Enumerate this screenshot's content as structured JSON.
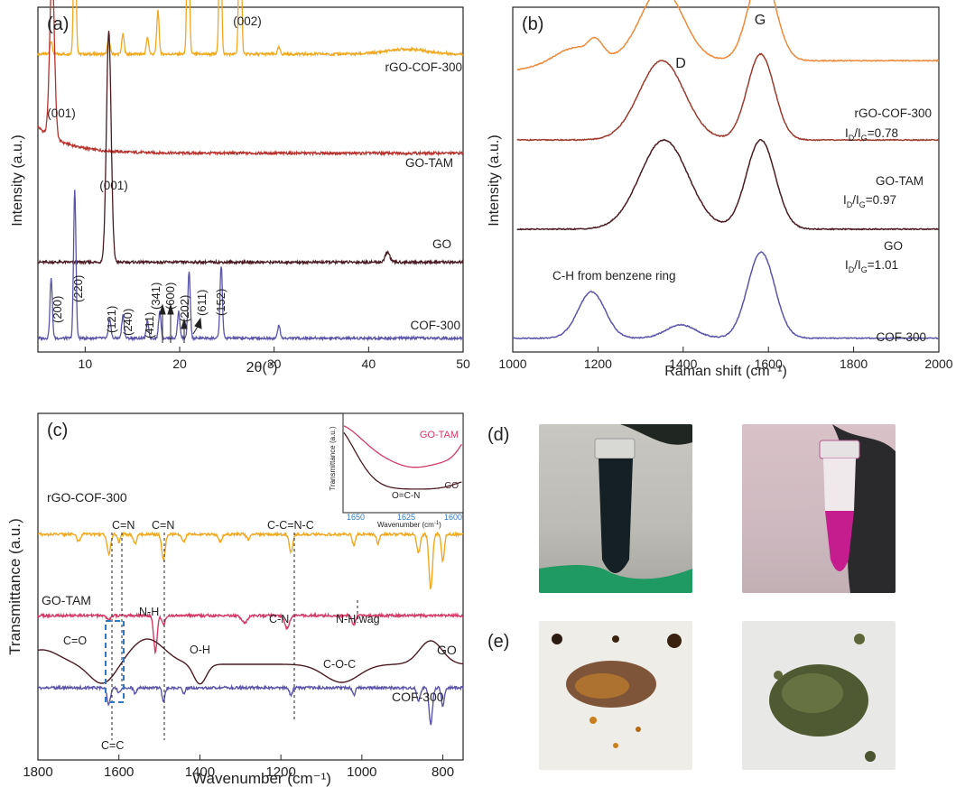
{
  "colors": {
    "yellow": "#f0a81f",
    "red": "#b8322d",
    "maroon": "#4a1c22",
    "blue": "#5a55a8",
    "orange": "#ee8a3a",
    "brown": "#9c3a2e",
    "pink": "#d33b66",
    "lightblue": "#2f78c4"
  },
  "chart_data": [
    {
      "panel_label": "(a)",
      "type": "line",
      "xlabel": "2θ(°)",
      "ylabel": "Intensity (a.u.)",
      "xlim": [
        5,
        50
      ],
      "xticks": [
        "10",
        "20",
        "30",
        "40",
        "50"
      ],
      "series": [
        {
          "name": "rGO-COF-300",
          "color": "#f0a81f",
          "baseline": 0.88,
          "peaks": [
            [
              6.4,
              0.04
            ],
            [
              8.9,
              0.45
            ],
            [
              12.5,
              0.05
            ],
            [
              14.0,
              0.06
            ],
            [
              16.6,
              0.05
            ],
            [
              17.7,
              0.13
            ],
            [
              20.9,
              0.47
            ],
            [
              24.3,
              0.46
            ],
            [
              26.4,
              0.6
            ],
            [
              30.5,
              0.02
            ]
          ],
          "label": "rGO-COF-300",
          "annotation": "(002)"
        },
        {
          "name": "GO-TAM",
          "color": "#b8322d",
          "baseline": 0.58,
          "peaks": [
            [
              6.5,
              0.5
            ]
          ],
          "label": "GO-TAM",
          "annotation": "(001)"
        },
        {
          "name": "GO",
          "color": "#4a1c22",
          "baseline": 0.25,
          "peaks": [
            [
              12.5,
              0.7
            ],
            [
              42.0,
              0.03
            ]
          ],
          "label": "GO",
          "annotation": "(001)"
        },
        {
          "name": "COF-300",
          "color": "#5a55a8",
          "baseline": 0.02,
          "peaks": [
            [
              6.4,
              0.18
            ],
            [
              8.9,
              0.45
            ],
            [
              12.6,
              0.06
            ],
            [
              14.0,
              0.07
            ],
            [
              16.6,
              0.05
            ],
            [
              17.9,
              0.08
            ],
            [
              19.9,
              0.08
            ],
            [
              21.0,
              0.2
            ],
            [
              24.4,
              0.22
            ],
            [
              30.5,
              0.04
            ]
          ],
          "label": "COF-300"
        }
      ],
      "annotations": [
        "(200)",
        "(220)",
        "(121)",
        "(240)",
        "(411)",
        "(341)",
        "(600)",
        "(202)",
        "(611)",
        "(152)"
      ]
    },
    {
      "panel_label": "(b)",
      "type": "line",
      "xlabel": "Raman shift (cm⁻¹)",
      "ylabel": "Intensity (a.u.)",
      "xlim": [
        1000,
        2000
      ],
      "xticks": [
        "1000",
        "1200",
        "1400",
        "1600",
        "1800",
        "2000"
      ],
      "peak_labels": [
        "D",
        "G"
      ],
      "series": [
        {
          "name": "rGO-COF-300",
          "color": "#ee8a3a",
          "baseline": 0.86,
          "ratio_label": "=0.78"
        },
        {
          "name": "GO-TAM",
          "color": "#9c3a2e",
          "baseline": 0.62,
          "ratio_label": "=0.97"
        },
        {
          "name": "GO",
          "color": "#4a1c22",
          "baseline": 0.35,
          "ratio_label": "=1.01"
        },
        {
          "name": "COF-300",
          "color": "#5a55a8",
          "baseline": 0.02
        }
      ],
      "annotation": "C-H  from benzene ring"
    },
    {
      "panel_label": "(c)",
      "type": "line",
      "xlabel": "Wavenumber (cm⁻¹)",
      "ylabel": "Transmittance (a.u.)",
      "xlim": [
        1800,
        750
      ],
      "xticks": [
        "1800",
        "1600",
        "1400",
        "1200",
        "1000",
        "800"
      ],
      "series": [
        {
          "name": "rGO-COF-300",
          "color": "#f0a81f"
        },
        {
          "name": "GO-TAM",
          "color": "#d33b66"
        },
        {
          "name": "GO",
          "color": "#4a1c22"
        },
        {
          "name": "COF-300",
          "color": "#5a55a8"
        }
      ],
      "band_labels": [
        "C=N",
        "C=N",
        "C-C=N-C",
        "N-H",
        "C-N",
        "N-H wag",
        "C=O",
        "O-H",
        "C-O-C",
        "C=C"
      ],
      "inset": {
        "ylabel": "Transmittance (a.u.)",
        "xlabel": "Wavenumber (cm",
        "xticks": [
          "1650",
          "1625",
          "1600"
        ],
        "series": [
          "GO-TAM",
          "GO"
        ],
        "annotation": "O=C-N"
      }
    }
  ],
  "photos": {
    "d_label": "(d)",
    "e_label": "(e)"
  }
}
